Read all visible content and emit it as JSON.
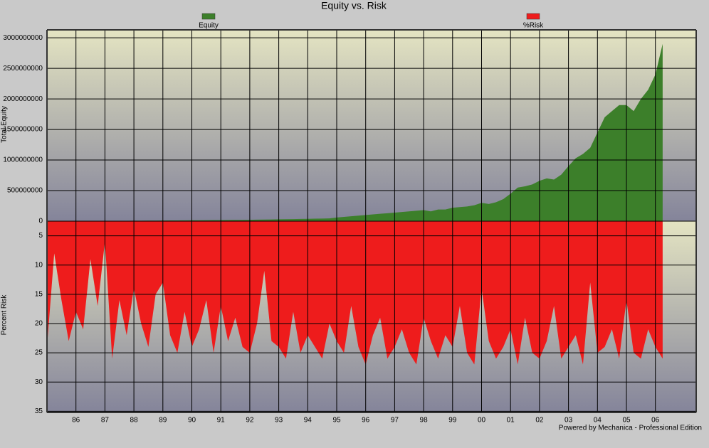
{
  "chart_data": {
    "type": "area",
    "title": "Equity vs. Risk",
    "ylabel": "Total Equity",
    "y2label": "Percent Risk",
    "categories": [
      null,
      null,
      null,
      null,
      "86",
      null,
      null,
      null,
      "87",
      null,
      null,
      null,
      "88",
      null,
      null,
      null,
      "89",
      null,
      null,
      null,
      "90",
      null,
      null,
      null,
      "91",
      null,
      null,
      null,
      "92",
      null,
      null,
      null,
      "93",
      null,
      null,
      null,
      "94",
      null,
      null,
      null,
      "95",
      null,
      null,
      null,
      "96",
      null,
      null,
      null,
      "97",
      null,
      null,
      null,
      "98",
      null,
      null,
      null,
      "99",
      null,
      null,
      null,
      "00",
      null,
      null,
      null,
      "01",
      null,
      null,
      null,
      "02",
      null,
      null,
      null,
      "03",
      null,
      null,
      null,
      "04",
      null,
      null,
      null,
      "05",
      null,
      null,
      null,
      "06",
      null
    ],
    "ylim": [
      0,
      3130000000
    ],
    "yticks": [
      0,
      500000000,
      1000000000,
      1500000000,
      2000000000,
      2500000000,
      3000000000
    ],
    "y2lim": [
      35.2,
      2.5
    ],
    "y2ticks": [
      5,
      10,
      15,
      20,
      25,
      30,
      35
    ],
    "grid": true,
    "series": [
      {
        "name": "Equity",
        "color": "#3c7f2a",
        "values": [
          1000000,
          1500000,
          2000000,
          2500000,
          3000000,
          3500000,
          4000000,
          4500000,
          5000000,
          5500000,
          6000000,
          6500000,
          7000000,
          7500000,
          8000000,
          9000000,
          10000000,
          11000000,
          12000000,
          13000000,
          14000000,
          15000000,
          16000000,
          17000000,
          18000000,
          19000000,
          20000000,
          21000000,
          22000000,
          24000000,
          26000000,
          28000000,
          30000000,
          32000000,
          34000000,
          36000000,
          38000000,
          40000000,
          42000000,
          45000000,
          60000000,
          70000000,
          80000000,
          90000000,
          100000000,
          110000000,
          120000000,
          130000000,
          140000000,
          150000000,
          160000000,
          170000000,
          180000000,
          160000000,
          190000000,
          190000000,
          220000000,
          230000000,
          240000000,
          260000000,
          300000000,
          280000000,
          310000000,
          360000000,
          450000000,
          550000000,
          570000000,
          600000000,
          660000000,
          700000000,
          680000000,
          760000000,
          900000000,
          1030000000,
          1100000000,
          1200000000,
          1450000000,
          1700000000,
          1800000000,
          1900000000,
          1900000000,
          1800000000,
          2000000000,
          2150000000,
          2400000000,
          2900000000
        ]
      },
      {
        "name": "%Risk",
        "color": "#ee1c1c",
        "axis": "y2",
        "values": [
          24,
          8,
          16,
          23,
          18,
          21,
          9,
          17,
          6,
          26,
          16,
          22,
          14,
          20,
          24,
          15,
          13,
          22,
          25,
          18,
          24,
          21,
          16,
          25,
          17,
          23,
          19,
          24,
          25,
          20,
          11,
          23,
          24,
          26,
          18,
          25,
          22,
          24,
          26,
          20,
          23,
          25,
          17,
          24,
          27,
          22,
          19,
          26,
          24,
          21,
          25,
          27,
          19,
          23,
          26,
          22,
          24,
          17,
          25,
          27,
          14,
          23,
          26,
          24,
          21,
          27,
          19,
          25,
          26,
          23,
          17,
          26,
          24,
          22,
          27,
          13,
          25,
          24,
          21,
          26,
          16,
          25,
          26,
          21,
          24,
          26
        ]
      }
    ],
    "footer": "Powered by Mechanica - Professional Edition"
  }
}
